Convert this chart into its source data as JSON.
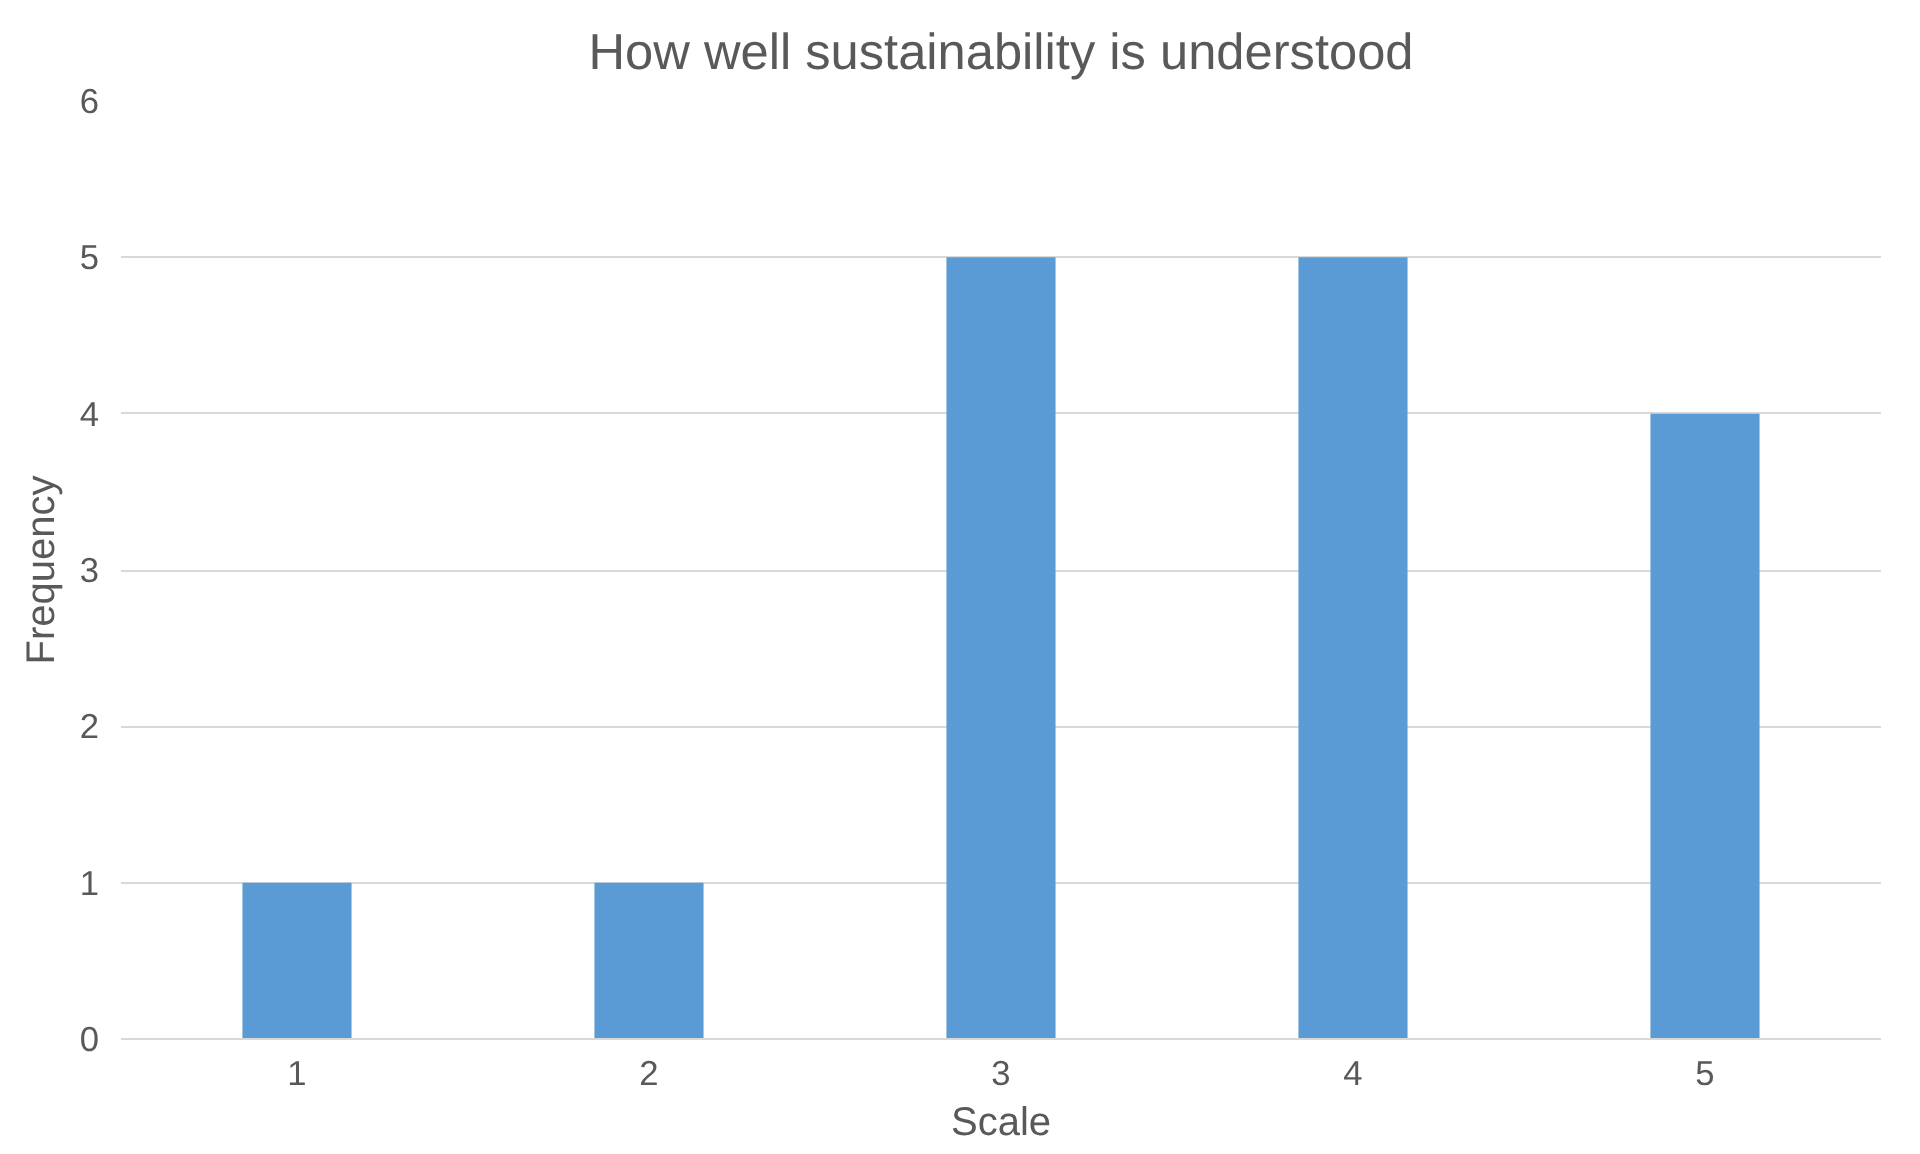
{
  "chart_data": {
    "type": "bar",
    "title": "How well sustainability is understood",
    "xlabel": "Scale",
    "ylabel": "Frequency",
    "categories": [
      "1",
      "2",
      "3",
      "4",
      "5"
    ],
    "values": [
      1,
      1,
      5,
      5,
      4
    ],
    "color": "#5b9bd5",
    "ylim": [
      0,
      6
    ],
    "yticks": [
      0,
      1,
      2,
      3,
      4,
      5,
      6
    ],
    "grid": "y"
  }
}
